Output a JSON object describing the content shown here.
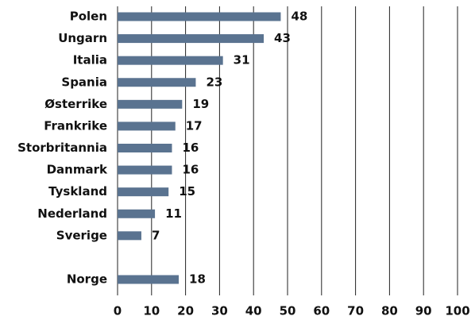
{
  "chart_data": {
    "type": "bar",
    "orientation": "horizontal",
    "categories": [
      "Polen",
      "Ungarn",
      "Italia",
      "Spania",
      "Østerrike",
      "Frankrike",
      "Storbritannia",
      "Danmark",
      "Tyskland",
      "Nederland",
      "Sverige",
      null,
      "Norge"
    ],
    "values": [
      48,
      43,
      31,
      23,
      19,
      17,
      16,
      16,
      15,
      11,
      7,
      null,
      18
    ],
    "color": "#5a7390",
    "xlim": [
      0,
      100
    ],
    "xticks": [
      0,
      10,
      20,
      30,
      40,
      50,
      60,
      70,
      80,
      90,
      100
    ],
    "grid": true
  }
}
